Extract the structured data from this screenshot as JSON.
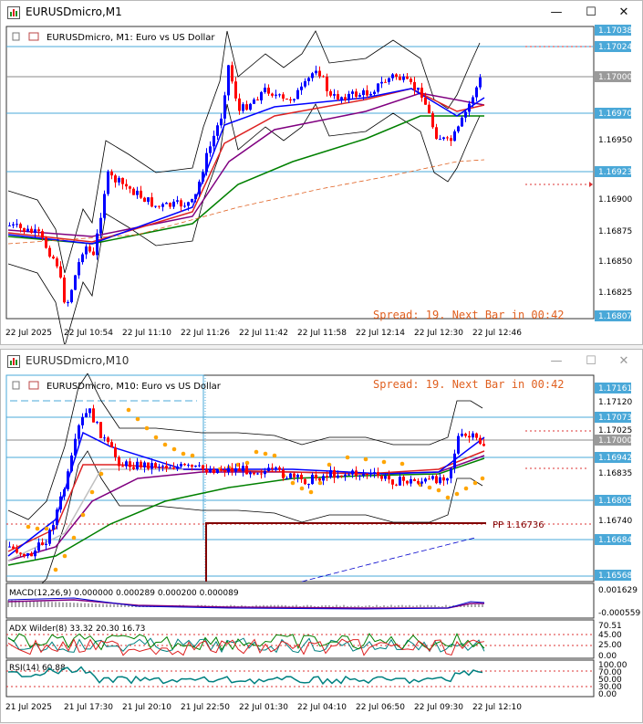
{
  "top_window": {
    "title": "EURUSDmicro,M1",
    "symbol_label": "EURUSDmicro, M1:  Euro vs US Dollar",
    "spread_text": "Spread: 19. Next Bar in 00:42",
    "price_labels": [
      "1.17038",
      "1.17024",
      "1.17000",
      "1.16970",
      "1.16950",
      "1.16923",
      "1.16900",
      "1.16875",
      "1.16850",
      "1.16825",
      "1.16807"
    ],
    "time_labels": [
      "22 Jul 2025",
      "22 Jul 10:54",
      "22 Jul 11:10",
      "22 Jul 11:26",
      "22 Jul 11:42",
      "22 Jul 11:58",
      "22 Jul 12:14",
      "22 Jul 12:30",
      "22 Jul 12:46"
    ],
    "controls": {
      "minimize": "—",
      "maximize": "☐",
      "close": "✕"
    }
  },
  "bottom_window": {
    "title": "EURUSDmicro,M10",
    "symbol_label": "EURUSDmicro, M10:  Euro vs US Dollar",
    "spread_text": "Spread: 19. Next Bar in 00:42",
    "pp_label": "PP 1.16736",
    "price_labels": [
      "1.17161",
      "1.17120",
      "1.17073",
      "1.17025",
      "1.17000",
      "1.16942",
      "1.16835",
      "1.16805",
      "1.16740",
      "1.16684",
      "1.16568"
    ],
    "macd_label": "MACD(12,26,9) 0.000000 0.000289 0.000200 0.000089",
    "macd_scale": [
      "0.001629",
      "-0.000559"
    ],
    "adx_label": "ADX Wilder(8) 33.32 20.30 16.73",
    "adx_scale": [
      "70.51",
      "45.00",
      "25.00",
      "0.00"
    ],
    "rsi_label": "RSI(14) 60.88",
    "rsi_scale": [
      "100.00",
      "70.00",
      "50.00",
      "30.00",
      "0.00"
    ],
    "time_labels": [
      "21 Jul 2025",
      "21 Jul 17:30",
      "21 Jul 20:10",
      "21 Jul 22:50",
      "22 Jul 01:30",
      "22 Jul 04:10",
      "22 Jul 06:50",
      "22 Jul 09:30",
      "22 Jul 12:10"
    ],
    "controls": {
      "minimize": "—",
      "maximize": "☐",
      "close": "✕"
    }
  },
  "colors": {
    "bull": "#0000ff",
    "bear": "#ff0000",
    "level_line": "#4aa8d8",
    "spread_text": "#e06020",
    "pp_line": "#800000",
    "ma_green": "#008000",
    "ma_purple": "#800080",
    "orange_dots": "#ffa500"
  }
}
